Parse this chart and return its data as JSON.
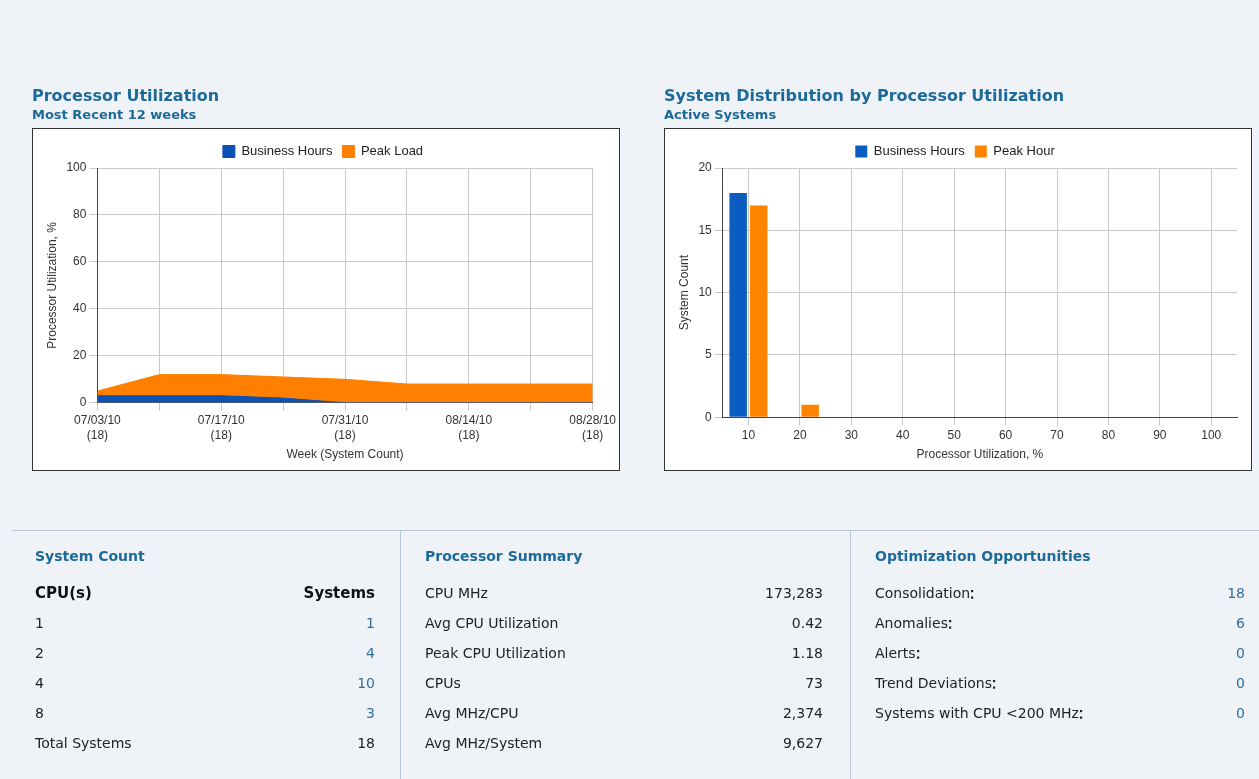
{
  "chart_data": [
    {
      "type": "area",
      "title": "Processor Utilization",
      "subtitle": "Most Recent 12 weeks",
      "xlabel": "Week (System Count)",
      "ylabel": "Processor Utilization, %",
      "categories": [
        "07/03/10 (18)",
        null,
        "07/17/10 (18)",
        null,
        "07/31/10 (18)",
        null,
        "08/14/10 (18)",
        null,
        "08/28/10 (18)"
      ],
      "series": [
        {
          "name": "Business Hours",
          "color": "#0a52b4",
          "values": [
            3,
            3,
            3,
            2,
            0,
            0,
            0,
            0,
            0
          ]
        },
        {
          "name": "Peak Load",
          "color": "#ff8000",
          "values": [
            5,
            12,
            12,
            11,
            10,
            8,
            8,
            8,
            8
          ]
        }
      ],
      "ylim": [
        0,
        100
      ],
      "yticks": [
        0,
        20,
        40,
        60,
        80,
        100
      ],
      "grid": true,
      "legend": "top"
    },
    {
      "type": "bar",
      "title": "System Distribution by Processor Utilization",
      "subtitle": "Active Systems",
      "xlabel": "Processor Utilization, %",
      "ylabel": "System Count",
      "categories": [
        "10",
        "20",
        "30",
        "40",
        "50",
        "60",
        "70",
        "80",
        "90",
        "100"
      ],
      "series": [
        {
          "name": "Business Hours",
          "color": "#0a5cc0",
          "values": [
            18,
            0,
            0,
            0,
            0,
            0,
            0,
            0,
            0,
            0
          ]
        },
        {
          "name": "Peak Hour",
          "color": "#ff8400",
          "values": [
            17,
            1,
            0,
            0,
            0,
            0,
            0,
            0,
            0,
            0
          ]
        }
      ],
      "ylim": [
        0,
        20
      ],
      "yticks": [
        0,
        5,
        10,
        15,
        20
      ],
      "grid": true,
      "legend": "top"
    },
    {
      "type": "other",
      "title": "System Count",
      "annotations": [
        "CPU(s)",
        "Systems"
      ],
      "categories": [
        "1",
        "2",
        "4",
        "8",
        "Total Systems"
      ],
      "value_labels": [
        "1",
        "4",
        "10",
        "3",
        "18"
      ],
      "colors": [
        "#2f6f9f",
        "#2f6f9f",
        "#2f6f9f",
        "#2f6f9f",
        "#222222"
      ]
    },
    {
      "type": "other",
      "title": "Processor Summary",
      "categories": [
        "CPU MHz",
        "Avg CPU Utilization",
        "Peak CPU Utilization",
        "CPUs",
        "Avg MHz/CPU",
        "Avg MHz/System"
      ],
      "value_labels": [
        "173,283",
        "0.42",
        "1.18",
        "73",
        "2,374",
        "9,627"
      ],
      "colors": [
        "#222222",
        "#222222",
        "#222222",
        "#222222",
        "#222222",
        "#222222"
      ]
    },
    {
      "type": "other",
      "title": "Optimization Opportunities",
      "categories": [
        "Consolidation",
        "Anomalies",
        "Alerts",
        "Trend Deviations",
        "Systems with CPU <200 MHz"
      ],
      "value_labels": [
        "18",
        "6",
        "0",
        "0",
        "0"
      ],
      "colors": [
        "#2f6f9f",
        "#2f6f9f",
        "#2f6f9f",
        "#2f6f9f",
        "#2f6f9f"
      ]
    }
  ]
}
